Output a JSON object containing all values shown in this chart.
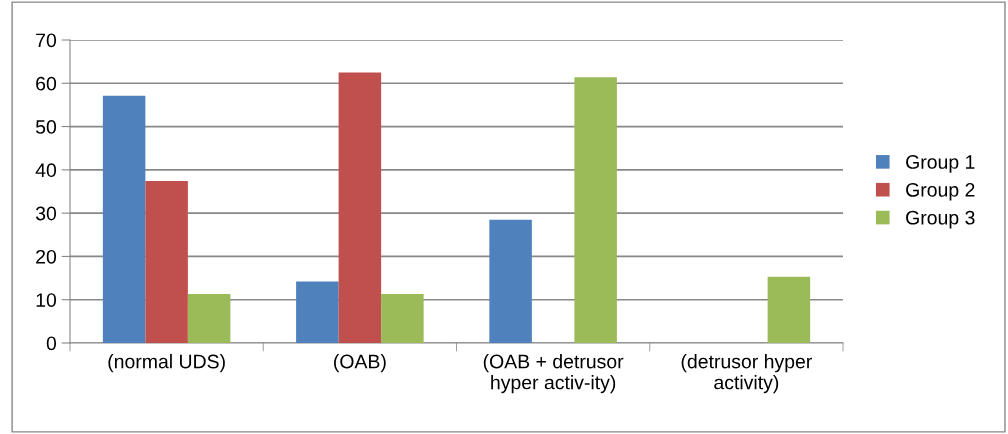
{
  "chart_data": {
    "type": "bar",
    "categories": [
      "(normal UDS)",
      "(OAB)",
      "(OAB + detrusor\nhyper activ-ity)",
      "(detrusor hyper\nactivity)"
    ],
    "series": [
      {
        "name": "Group 1",
        "color": "#4f81bd",
        "values": [
          57.1,
          14.2,
          28.5,
          0
        ]
      },
      {
        "name": "Group 2",
        "color": "#c0504d",
        "values": [
          37.4,
          62.5,
          0,
          0
        ]
      },
      {
        "name": "Group 3",
        "color": "#9bbb59",
        "values": [
          11.3,
          11.3,
          61.4,
          15.3
        ]
      }
    ],
    "ylim": [
      0,
      70
    ],
    "yticks": [
      0,
      10,
      20,
      30,
      40,
      50,
      60,
      70
    ],
    "grid": "y",
    "legend": "right"
  }
}
